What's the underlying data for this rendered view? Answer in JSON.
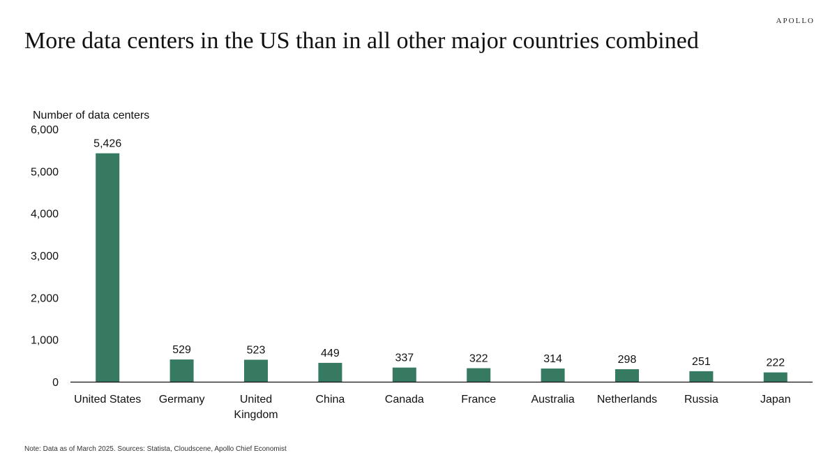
{
  "brand": "APOLLO",
  "title": "More data centers in the US than in all other major countries combined",
  "note": "Note: Data as of March 2025. Sources: Statista, Cloudscene, Apollo Chief Economist",
  "colors": {
    "bar": "#367a61",
    "axis": "#111111"
  },
  "chart_data": {
    "type": "bar",
    "title": "More data centers in the US than in all other major countries combined",
    "xlabel": "",
    "ylabel": "Number of data centers",
    "ylim": [
      0,
      6000
    ],
    "yticks": [
      "0",
      "1,000",
      "2,000",
      "3,000",
      "4,000",
      "5,000",
      "6,000"
    ],
    "grid": false,
    "legend": "none",
    "categories": [
      "United States",
      "Germany",
      "United Kingdom",
      "China",
      "Canada",
      "France",
      "Australia",
      "Netherlands",
      "Russia",
      "Japan"
    ],
    "category_lines": [
      [
        "United States"
      ],
      [
        "Germany"
      ],
      [
        "United",
        "Kingdom"
      ],
      [
        "China"
      ],
      [
        "Canada"
      ],
      [
        "France"
      ],
      [
        "Australia"
      ],
      [
        "Netherlands"
      ],
      [
        "Russia"
      ],
      [
        "Japan"
      ]
    ],
    "values": [
      5426,
      529,
      523,
      449,
      337,
      322,
      314,
      298,
      251,
      222
    ],
    "value_labels": [
      "5,426",
      "529",
      "523",
      "449",
      "337",
      "322",
      "314",
      "298",
      "251",
      "222"
    ]
  }
}
